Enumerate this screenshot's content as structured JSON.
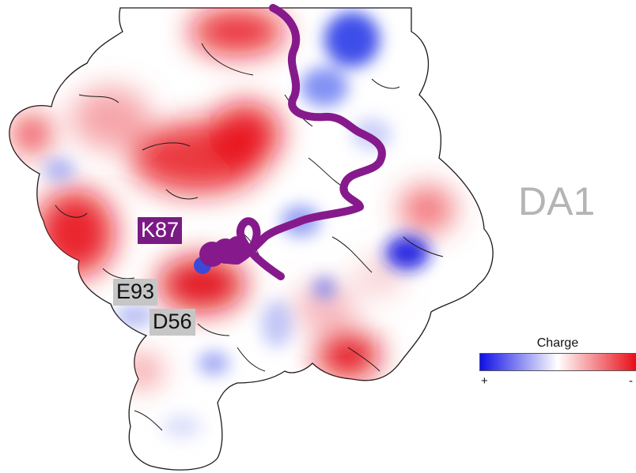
{
  "figure": {
    "panel_title": "DA1",
    "residue_labels": [
      {
        "text": "K87",
        "bg": "#7a1a84",
        "color": "#ffffff"
      },
      {
        "text": "E93",
        "bg": "#c6c6c6",
        "color": "#111111"
      },
      {
        "text": "D56",
        "bg": "#c6c6c6",
        "color": "#111111"
      }
    ],
    "legend": {
      "title": "Charge",
      "positive_symbol": "+",
      "negative_symbol": "-",
      "colors": {
        "positive": "#1010e6",
        "neutral": "#ffffff",
        "negative": "#e8101a"
      }
    },
    "ribbon_color": "#861a8c"
  }
}
